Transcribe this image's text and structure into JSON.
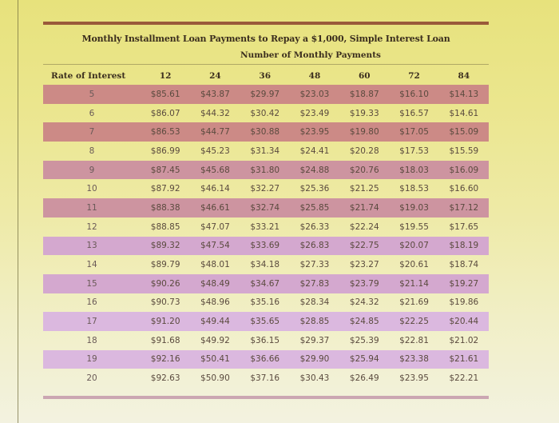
{
  "document": {
    "title": "Monthly Installment Loan Payments to Repay a $1,000, Simple Interest Loan",
    "subtitle": "Number of Monthly Payments"
  },
  "table": {
    "rate_header": "Rate of Interest",
    "columns": [
      "12",
      "24",
      "36",
      "48",
      "60",
      "72",
      "84"
    ],
    "rows": [
      {
        "rate": "5",
        "values": [
          "$85.61",
          "$43.87",
          "$29.97",
          "$23.03",
          "$18.87",
          "$16.10",
          "$14.13"
        ]
      },
      {
        "rate": "6",
        "values": [
          "$86.07",
          "$44.32",
          "$30.42",
          "$23.49",
          "$19.33",
          "$16.57",
          "$14.61"
        ]
      },
      {
        "rate": "7",
        "values": [
          "$86.53",
          "$44.77",
          "$30.88",
          "$23.95",
          "$19.80",
          "$17.05",
          "$15.09"
        ]
      },
      {
        "rate": "8",
        "values": [
          "$86.99",
          "$45.23",
          "$31.34",
          "$24.41",
          "$20.28",
          "$17.53",
          "$15.59"
        ]
      },
      {
        "rate": "9",
        "values": [
          "$87.45",
          "$45.68",
          "$31.80",
          "$24.88",
          "$20.76",
          "$18.03",
          "$16.09"
        ]
      },
      {
        "rate": "10",
        "values": [
          "$87.92",
          "$46.14",
          "$32.27",
          "$25.36",
          "$21.25",
          "$18.53",
          "$16.60"
        ]
      },
      {
        "rate": "11",
        "values": [
          "$88.38",
          "$46.61",
          "$32.74",
          "$25.85",
          "$21.74",
          "$19.03",
          "$17.12"
        ]
      },
      {
        "rate": "12",
        "values": [
          "$88.85",
          "$47.07",
          "$33.21",
          "$26.33",
          "$22.24",
          "$19.55",
          "$17.65"
        ]
      },
      {
        "rate": "13",
        "values": [
          "$89.32",
          "$47.54",
          "$33.69",
          "$26.83",
          "$22.75",
          "$20.07",
          "$18.19"
        ]
      },
      {
        "rate": "14",
        "values": [
          "$89.79",
          "$48.01",
          "$34.18",
          "$27.33",
          "$23.27",
          "$20.61",
          "$18.74"
        ]
      },
      {
        "rate": "15",
        "values": [
          "$90.26",
          "$48.49",
          "$34.67",
          "$27.83",
          "$23.79",
          "$21.14",
          "$19.27"
        ]
      },
      {
        "rate": "16",
        "values": [
          "$90.73",
          "$48.96",
          "$35.16",
          "$28.34",
          "$24.32",
          "$21.69",
          "$19.86"
        ]
      },
      {
        "rate": "17",
        "values": [
          "$91.20",
          "$49.44",
          "$35.65",
          "$28.85",
          "$24.85",
          "$22.25",
          "$20.44"
        ]
      },
      {
        "rate": "18",
        "values": [
          "$91.68",
          "$49.92",
          "$36.15",
          "$29.37",
          "$25.39",
          "$22.81",
          "$21.02"
        ]
      },
      {
        "rate": "19",
        "values": [
          "$92.16",
          "$50.41",
          "$36.66",
          "$29.90",
          "$25.94",
          "$23.38",
          "$21.61"
        ]
      },
      {
        "rate": "20",
        "values": [
          "$92.63",
          "$50.90",
          "$37.16",
          "$30.43",
          "$26.49",
          "$23.95",
          "$22.21"
        ]
      }
    ]
  },
  "colors": {
    "band_top": "#cc8a86",
    "band_bottom": "#dbb8df",
    "rule": "#9a5a3a",
    "background_top": "#e7e27c",
    "background_bottom": "#f3f2e0"
  }
}
